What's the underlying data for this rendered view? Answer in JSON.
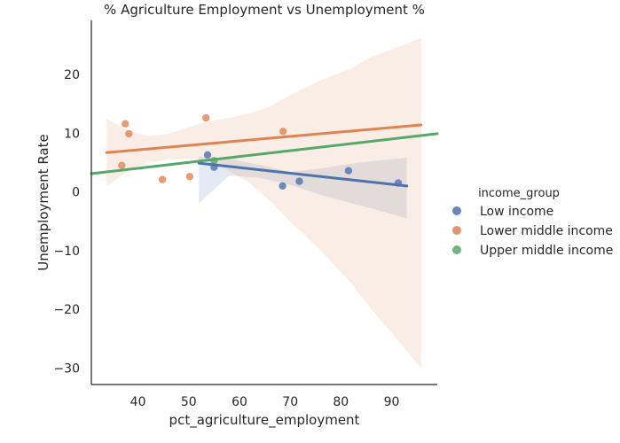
{
  "chart_data": {
    "type": "scatter",
    "title": "% Agriculture Employment vs Unemployment %",
    "xlabel": "pct_agriculture_employment",
    "ylabel": "Unemployment Rate",
    "xlim": [
      30.8,
      99.0
    ],
    "ylim": [
      -32.8,
      29.2
    ],
    "xticks": [
      40,
      50,
      60,
      70,
      80,
      90
    ],
    "yticks": [
      20,
      10,
      0,
      -10,
      -20,
      -30
    ],
    "xtick_labels": [
      "40",
      "50",
      "60",
      "70",
      "80",
      "90"
    ],
    "ytick_labels": [
      "20",
      "10",
      "0",
      "−10",
      "−20",
      "−30"
    ],
    "grid": false,
    "legend_title": "income_group",
    "legend_position": "right",
    "series": [
      {
        "name": "Low income",
        "color": "#4c72b0",
        "points": [
          [
            53.7,
            6.3
          ],
          [
            55.0,
            4.2
          ],
          [
            68.5,
            1.0
          ],
          [
            71.8,
            1.8
          ],
          [
            81.5,
            3.6
          ],
          [
            91.3,
            1.5
          ]
        ],
        "fit": {
          "x": [
            52.0,
            93.0
          ],
          "y": [
            4.9,
            1.0
          ]
        },
        "ci": {
          "x": [
            52.0,
            58.0,
            64.0,
            70.0,
            76.0,
            82.0,
            88.0,
            93.0
          ],
          "upper": [
            6.0,
            5.6,
            4.6,
            3.4,
            4.0,
            4.8,
            5.4,
            5.8
          ],
          "lower": [
            -2.0,
            2.8,
            2.4,
            1.2,
            -0.5,
            -1.9,
            -3.3,
            -4.5
          ]
        }
      },
      {
        "name": "Lower middle income",
        "color": "#dd8452",
        "points": [
          [
            37.5,
            11.6
          ],
          [
            38.2,
            9.9
          ],
          [
            36.8,
            4.5
          ],
          [
            44.8,
            2.1
          ],
          [
            50.2,
            2.6
          ],
          [
            53.4,
            12.6
          ],
          [
            68.6,
            10.3
          ]
        ],
        "fit": {
          "x": [
            33.8,
            95.8
          ],
          "y": [
            6.7,
            11.4
          ]
        },
        "ci": {
          "x": [
            33.8,
            38.0,
            42.0,
            46.0,
            50.0,
            54.0,
            58.0,
            62.0,
            66.0,
            70.0,
            76.0,
            82.0,
            86.0,
            90.0,
            95.8
          ],
          "upper": [
            12.4,
            10.5,
            9.5,
            9.9,
            11.0,
            12.0,
            12.6,
            13.4,
            14.5,
            16.5,
            19.0,
            21.0,
            23.0,
            24.2,
            26.2
          ],
          "lower": [
            0.9,
            3.6,
            5.0,
            5.5,
            5.7,
            5.2,
            3.5,
            1.5,
            -1.5,
            -5.0,
            -10.0,
            -15.5,
            -20.0,
            -24.0,
            -30.0
          ]
        }
      },
      {
        "name": "Upper middle income",
        "color": "#55a868",
        "points": [
          [
            55.0,
            5.3
          ]
        ],
        "fit": {
          "x": [
            30.8,
            99.0
          ],
          "y": [
            3.1,
            9.9
          ]
        },
        "ci": null
      }
    ]
  }
}
